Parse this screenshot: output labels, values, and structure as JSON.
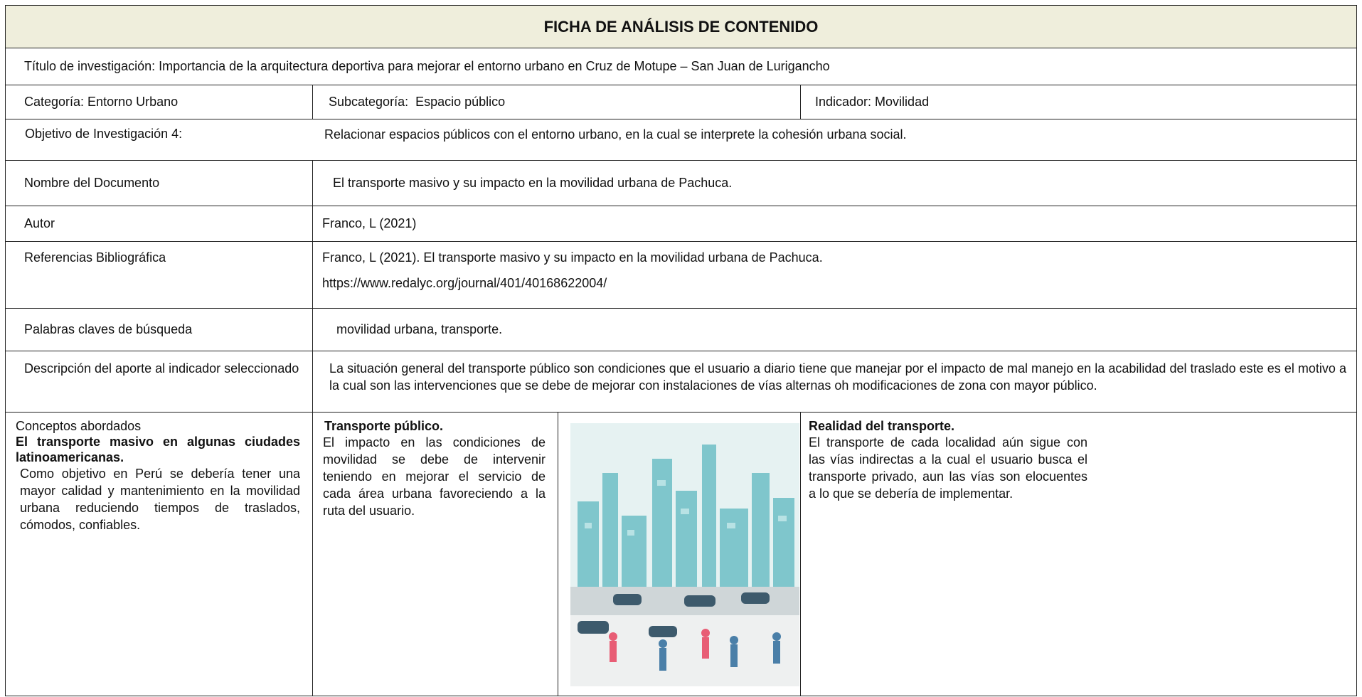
{
  "title": "FICHA DE ANÁLISIS DE CONTENIDO",
  "research_title": "Título de investigación: Importancia de la arquitectura deportiva para mejorar el entorno urbano en Cruz de Motupe – San Juan de Lurigancho",
  "category": "Categoría: Entorno Urbano",
  "subcategory": "Subcategoría:  Espacio público",
  "indicator": "Indicador: Movilidad",
  "objective": {
    "label": "Objetivo de Investigación 4:",
    "value": "Relacionar espacios públicos con el entorno urbano, en la cual se interprete la cohesión urbana social."
  },
  "document_name": {
    "label": "Nombre del Documento",
    "value": "El transporte masivo y su impacto en la movilidad urbana de Pachuca."
  },
  "author": {
    "label": "Autor",
    "value": "Franco, L (2021)"
  },
  "references": {
    "label": "Referencias Bibliográfica",
    "lines": [
      "Franco, L (2021). El transporte masivo y su impacto en la movilidad urbana de Pachuca.",
      "https://www.redalyc.org/journal/401/40168622004/"
    ]
  },
  "keywords": {
    "label": "Palabras claves de búsqueda",
    "value": "movilidad urbana, transporte."
  },
  "description": {
    "label": "Descripción del aporte al indicador seleccionado",
    "value": "La situación general del transporte público son condiciones que el usuario a diario tiene que manejar por el impacto de mal manejo en la acabilidad del traslado este es el motivo a la cual son las intervenciones que se debe de mejorar con instalaciones de vías alternas oh modificaciones de zona con mayor público."
  },
  "concepts": {
    "heading": "Conceptos abordados",
    "subtitle": "El transporte masivo en algunas ciudades latinoamericanas.",
    "text": "Como objetivo en Perú se debería tener una mayor calidad y mantenimiento en la movilidad urbana reduciendo tiempos de traslados, cómodos, confiables."
  },
  "public_transport": {
    "heading": "Transporte público.",
    "text": "El impacto en las condiciones de movilidad se debe de intervenir teniendo en mejorar el servicio de cada área urbana favoreciendo a la ruta del usuario."
  },
  "reality": {
    "heading": "Realidad del transporte.",
    "text": "El transporte de cada localidad aún sigue con las vías indirectas a la cual el usuario busca el transporte privado, aun las vías son elocuentes a lo que se debería de implementar."
  }
}
